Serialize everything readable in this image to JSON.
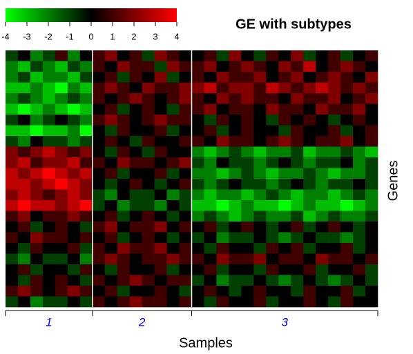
{
  "chart_data": {
    "type": "heatmap",
    "title": "GE with subtypes",
    "xlabel": "Samples",
    "ylabel": "Genes",
    "groups": [
      "1",
      "2",
      "3"
    ],
    "group_color": "#0000ff",
    "separator_color": "#ffffff",
    "xlim": [
      0,
      30
    ],
    "xticks": [
      0,
      7,
      15,
      30
    ],
    "colorscale": [
      "#00ff00",
      "#000000",
      "#ff0000"
    ],
    "zlim": [
      -4,
      4
    ],
    "zticks": [
      -4,
      -3,
      -2,
      -1,
      0,
      1,
      2,
      3,
      4
    ],
    "z": [
      [
        -1,
        0,
        -2,
        -1,
        1,
        -2,
        0,
        1,
        2,
        0,
        1,
        -1,
        2,
        1,
        0,
        0,
        1,
        -1,
        2,
        0,
        -1,
        1,
        0,
        2,
        -1,
        0,
        1,
        -1,
        0,
        1
      ],
      [
        -2,
        -3,
        -1,
        -2,
        -3,
        -1,
        -2,
        1,
        0,
        2,
        1,
        1,
        -1,
        2,
        1,
        1,
        2,
        0,
        1,
        2,
        1,
        0,
        2,
        1,
        3,
        0,
        1,
        2,
        1,
        0
      ],
      [
        -2,
        -1,
        -3,
        -2,
        -2,
        -3,
        -1,
        0,
        1,
        -1,
        1,
        0,
        2,
        -1,
        0,
        1,
        0,
        2,
        1,
        1,
        2,
        0,
        1,
        2,
        0,
        1,
        2,
        1,
        0,
        2
      ],
      [
        -3,
        -3,
        -2,
        -3,
        -4,
        -2,
        -3,
        1,
        2,
        1,
        0,
        2,
        1,
        1,
        2,
        2,
        3,
        1,
        2,
        2,
        1,
        3,
        2,
        1,
        2,
        3,
        2,
        1,
        2,
        1
      ],
      [
        -2,
        -1,
        -2,
        -3,
        -2,
        -1,
        -2,
        1,
        0,
        1,
        2,
        1,
        0,
        1,
        2,
        1,
        0,
        2,
        1,
        2,
        1,
        1,
        0,
        2,
        1,
        1,
        2,
        0,
        1,
        2
      ],
      [
        -3,
        -4,
        -3,
        -2,
        -3,
        -4,
        -3,
        0,
        1,
        -1,
        0,
        1,
        0,
        -1,
        1,
        1,
        2,
        0,
        1,
        1,
        0,
        2,
        1,
        1,
        0,
        2,
        1,
        1,
        2,
        0
      ],
      [
        -1,
        0,
        -2,
        -1,
        0,
        -1,
        -2,
        1,
        2,
        1,
        0,
        1,
        2,
        1,
        1,
        0,
        -1,
        1,
        0,
        1,
        0,
        -1,
        1,
        0,
        1,
        0,
        -1,
        0,
        1,
        0
      ],
      [
        -3,
        -3,
        -4,
        -3,
        -3,
        -2,
        -4,
        0,
        -1,
        1,
        0,
        0,
        1,
        -1,
        0,
        0,
        1,
        -1,
        0,
        1,
        0,
        0,
        -1,
        1,
        0,
        0,
        1,
        -1,
        0,
        1
      ],
      [
        -1,
        -2,
        0,
        -1,
        -1,
        -2,
        -1,
        0,
        1,
        0,
        -1,
        1,
        0,
        0,
        1,
        1,
        0,
        2,
        1,
        1,
        0,
        1,
        2,
        1,
        0,
        1,
        1,
        2,
        0,
        1
      ],
      [
        2,
        1,
        2,
        3,
        2,
        1,
        2,
        0,
        -1,
        1,
        0,
        -1,
        1,
        0,
        0,
        -2,
        -3,
        -2,
        -1,
        -2,
        -3,
        -2,
        -2,
        -1,
        -3,
        -2,
        -2,
        -1,
        -2,
        -3
      ],
      [
        2,
        3,
        1,
        2,
        2,
        3,
        1,
        1,
        0,
        2,
        1,
        1,
        0,
        1,
        2,
        -1,
        -2,
        0,
        -1,
        -1,
        -2,
        -1,
        0,
        -1,
        -2,
        -1,
        -1,
        0,
        -2,
        -1
      ],
      [
        3,
        2,
        3,
        4,
        3,
        2,
        3,
        0,
        1,
        -1,
        0,
        0,
        1,
        -1,
        0,
        -2,
        -2,
        -3,
        -2,
        -1,
        -2,
        -3,
        -2,
        -2,
        -1,
        -2,
        -3,
        -2,
        -2,
        -1
      ],
      [
        3,
        3,
        2,
        3,
        4,
        3,
        2,
        0,
        -1,
        0,
        1,
        0,
        -1,
        0,
        1,
        -1,
        -2,
        -1,
        0,
        -1,
        -1,
        -2,
        -1,
        0,
        -1,
        -2,
        -1,
        -1,
        0,
        -1
      ],
      [
        2,
        3,
        2,
        1,
        2,
        3,
        2,
        -1,
        -2,
        0,
        -1,
        -1,
        0,
        -2,
        -1,
        -2,
        -3,
        -2,
        -2,
        -3,
        -2,
        -1,
        -2,
        -3,
        -2,
        -2,
        -3,
        -2,
        -1,
        -2
      ],
      [
        3,
        4,
        3,
        3,
        2,
        3,
        4,
        -1,
        0,
        -2,
        -1,
        -1,
        -2,
        0,
        -1,
        -3,
        -3,
        -4,
        -3,
        -2,
        -3,
        -3,
        -4,
        -3,
        -2,
        -3,
        -3,
        -4,
        -3,
        -2
      ],
      [
        1,
        2,
        0,
        1,
        1,
        2,
        1,
        0,
        1,
        -1,
        0,
        1,
        0,
        -1,
        0,
        -2,
        -1,
        -2,
        -3,
        -2,
        -1,
        -2,
        -2,
        -1,
        -3,
        -2,
        -1,
        -2,
        -2,
        -1
      ],
      [
        0,
        1,
        -1,
        0,
        1,
        0,
        -1,
        1,
        2,
        0,
        1,
        1,
        2,
        0,
        1,
        0,
        1,
        -1,
        0,
        1,
        0,
        -1,
        0,
        1,
        -1,
        0,
        1,
        0,
        -1,
        0
      ],
      [
        1,
        0,
        2,
        1,
        1,
        0,
        1,
        0,
        1,
        -1,
        0,
        1,
        0,
        -1,
        0,
        -1,
        0,
        -2,
        -1,
        -1,
        0,
        -1,
        -2,
        -1,
        0,
        -1,
        -1,
        -2,
        -1,
        0
      ],
      [
        0,
        -1,
        1,
        0,
        0,
        1,
        -1,
        1,
        0,
        2,
        1,
        1,
        2,
        0,
        1,
        0,
        -1,
        1,
        0,
        0,
        -1,
        1,
        0,
        1,
        -1,
        0,
        0,
        1,
        -1,
        0
      ],
      [
        -1,
        -2,
        0,
        -1,
        -1,
        0,
        -2,
        1,
        2,
        1,
        0,
        1,
        1,
        2,
        1,
        1,
        0,
        2,
        1,
        1,
        2,
        0,
        1,
        1,
        0,
        2,
        1,
        1,
        0,
        1
      ],
      [
        0,
        1,
        -1,
        0,
        0,
        -1,
        1,
        0,
        -1,
        1,
        0,
        0,
        1,
        -1,
        0,
        0,
        1,
        -1,
        0,
        0,
        -1,
        1,
        0,
        0,
        1,
        -1,
        0,
        0,
        1,
        -1
      ],
      [
        0,
        -1,
        1,
        0,
        1,
        0,
        -1,
        1,
        0,
        1,
        2,
        1,
        0,
        1,
        1,
        -1,
        0,
        -2,
        -1,
        -1,
        0,
        -1,
        -2,
        -1,
        0,
        -1,
        -2,
        -1,
        0,
        -1
      ],
      [
        1,
        2,
        1,
        0,
        1,
        2,
        1,
        0,
        1,
        -1,
        0,
        0,
        1,
        0,
        -1,
        0,
        1,
        0,
        -1,
        0,
        1,
        0,
        0,
        -1,
        1,
        0,
        0,
        1,
        -1,
        0
      ],
      [
        -1,
        0,
        -2,
        -1,
        -1,
        0,
        -1,
        1,
        0,
        1,
        2,
        1,
        1,
        0,
        1,
        0,
        -1,
        1,
        0,
        0,
        1,
        -1,
        0,
        0,
        1,
        0,
        -1,
        1,
        0,
        0
      ]
    ]
  }
}
